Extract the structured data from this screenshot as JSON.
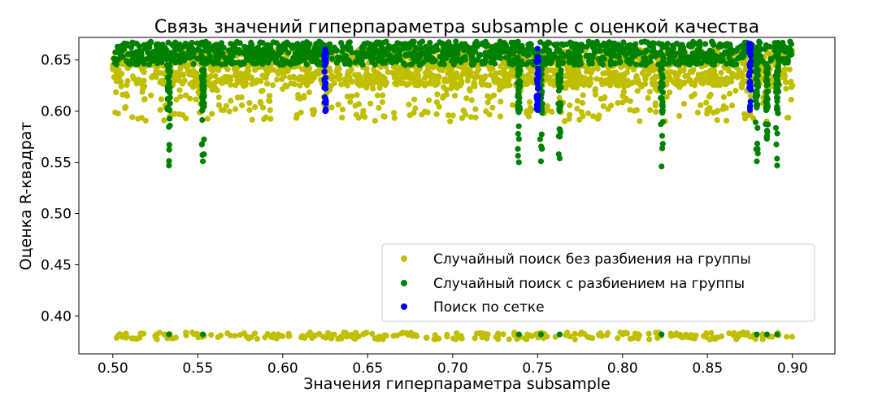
{
  "chart_data": {
    "type": "scatter",
    "title": "Связь значений гиперпараметра subsample с оценкой качества",
    "xlabel": "Значения гиперпараметра subsample",
    "ylabel": "Оценка R-квадрат",
    "xlim": [
      0.48,
      0.925
    ],
    "ylim": [
      0.363,
      0.672
    ],
    "xticks": [
      "0.50",
      "0.55",
      "0.60",
      "0.65",
      "0.70",
      "0.75",
      "0.80",
      "0.85",
      "0.90"
    ],
    "yticks": [
      "0.40",
      "0.45",
      "0.50",
      "0.55",
      "0.60",
      "0.65"
    ],
    "grid": false,
    "legend_position": "lower-right",
    "series": [
      {
        "name": "Случайный поиск без разбиения на группы",
        "color": "#bfbf00",
        "x_range": [
          0.5,
          0.9
        ],
        "main_band": [
          0.59,
          0.662
        ],
        "dense_band": [
          0.625,
          0.66
        ],
        "low_band": [
          0.377,
          0.384
        ]
      },
      {
        "name": "Случайный поиск с разбиением на группы",
        "color": "#008000",
        "x_range": [
          0.5,
          0.9
        ],
        "main_band": [
          0.645,
          0.668
        ],
        "columns": [
          {
            "x": 0.533,
            "min": 0.547
          },
          {
            "x": 0.553,
            "min": 0.551
          },
          {
            "x": 0.739,
            "min": 0.55
          },
          {
            "x": 0.752,
            "min": 0.551
          },
          {
            "x": 0.763,
            "min": 0.554
          },
          {
            "x": 0.823,
            "min": 0.546
          },
          {
            "x": 0.879,
            "min": 0.551
          },
          {
            "x": 0.885,
            "min": 0.573
          },
          {
            "x": 0.891,
            "min": 0.547
          }
        ],
        "low_points_x": [
          0.533,
          0.553,
          0.739,
          0.752,
          0.763,
          0.823,
          0.879,
          0.885,
          0.891
        ],
        "low_value": 0.382
      },
      {
        "name": "Поиск по сетке",
        "color": "#0000ff",
        "columns": [
          {
            "x": 0.625,
            "min": 0.6,
            "max": 0.66
          },
          {
            "x": 0.75,
            "min": 0.601,
            "max": 0.661
          },
          {
            "x": 0.875,
            "min": 0.601,
            "max": 0.666
          }
        ]
      }
    ]
  }
}
